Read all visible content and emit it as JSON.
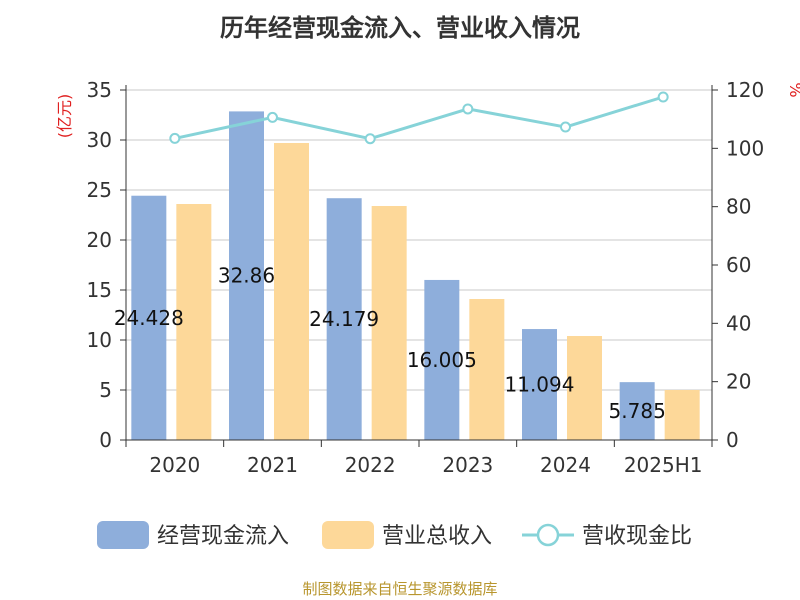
{
  "chart_data": {
    "type": "bar",
    "title": "历年经营现金流入、营业收入情况",
    "source": "制图数据来自恒生聚源数据库",
    "categories": [
      "2020",
      "2021",
      "2022",
      "2023",
      "2024",
      "2025H1"
    ],
    "y_left": {
      "label": "(亿元)",
      "range": [
        0,
        35
      ],
      "ticks": [
        0,
        5,
        10,
        15,
        20,
        25,
        30,
        35
      ]
    },
    "y_right": {
      "label": "%",
      "range": [
        0,
        120
      ],
      "ticks": [
        0,
        20,
        40,
        60,
        80,
        100,
        120
      ]
    },
    "grid": true,
    "legend_position": "bottom",
    "series": [
      {
        "name": "经营现金流入",
        "type": "bar",
        "axis": "left",
        "color": "#8eaedb",
        "values": [
          24.428,
          32.86,
          24.179,
          16.005,
          11.094,
          5.785
        ],
        "data_labels": [
          "24.428",
          "32.86",
          "24.179",
          "16.005",
          "11.094",
          "5.785"
        ]
      },
      {
        "name": "营业总收入",
        "type": "bar",
        "axis": "left",
        "color": "#fdd899",
        "values": [
          23.6,
          29.7,
          23.4,
          14.1,
          10.4,
          5.0
        ]
      },
      {
        "name": "营收现金比",
        "type": "line",
        "axis": "right",
        "color": "#86d3d8",
        "values": [
          103.4,
          110.6,
          103.3,
          113.5,
          107.3,
          117.6
        ]
      }
    ]
  }
}
